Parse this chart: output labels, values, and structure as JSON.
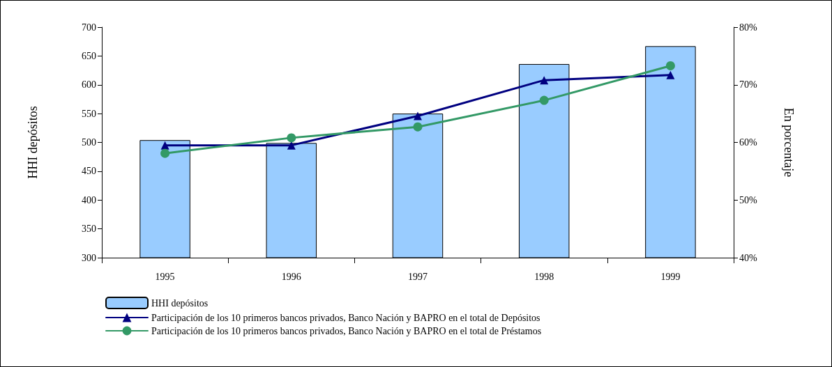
{
  "chart_data": {
    "type": "bar",
    "ylabel": "HHI depósitos",
    "y2label": "En porcentaje",
    "categories": [
      "1995",
      "1996",
      "1997",
      "1998",
      "1999"
    ],
    "series": [
      {
        "name": "HHI depósitos",
        "color": "#99ccff",
        "values": [
          504,
          499,
          550,
          636,
          667
        ]
      },
      {
        "name": "Participación de los 10 primeros bancos privados, Banco Nación y BAPRO en el total de Depósitos",
        "type": "line",
        "axis": "y2",
        "marker": "triangle",
        "color": "#000080",
        "values": [
          59.5,
          59.5,
          64.6,
          70.8,
          71.7
        ]
      },
      {
        "name": "Participación de los 10 primeros bancos privados, Banco Nación y BAPRO en el total de Préstamos",
        "type": "line",
        "axis": "y2",
        "marker": "circle",
        "color": "#339966",
        "values": [
          58.1,
          60.8,
          62.7,
          67.3,
          73.3
        ]
      }
    ],
    "ylim": [
      300,
      700
    ],
    "yticks": [
      300,
      350,
      400,
      450,
      500,
      550,
      600,
      650,
      700
    ],
    "y2lim": [
      40,
      80
    ],
    "y2ticks": [
      {
        "value": 40,
        "label": "40%"
      },
      {
        "value": 50,
        "label": "50%"
      },
      {
        "value": 60,
        "label": "60%"
      },
      {
        "value": 70,
        "label": "70%"
      },
      {
        "value": 80,
        "label": "80%"
      }
    ],
    "grid": false,
    "legend": "bottom left",
    "line_style": "solid"
  }
}
